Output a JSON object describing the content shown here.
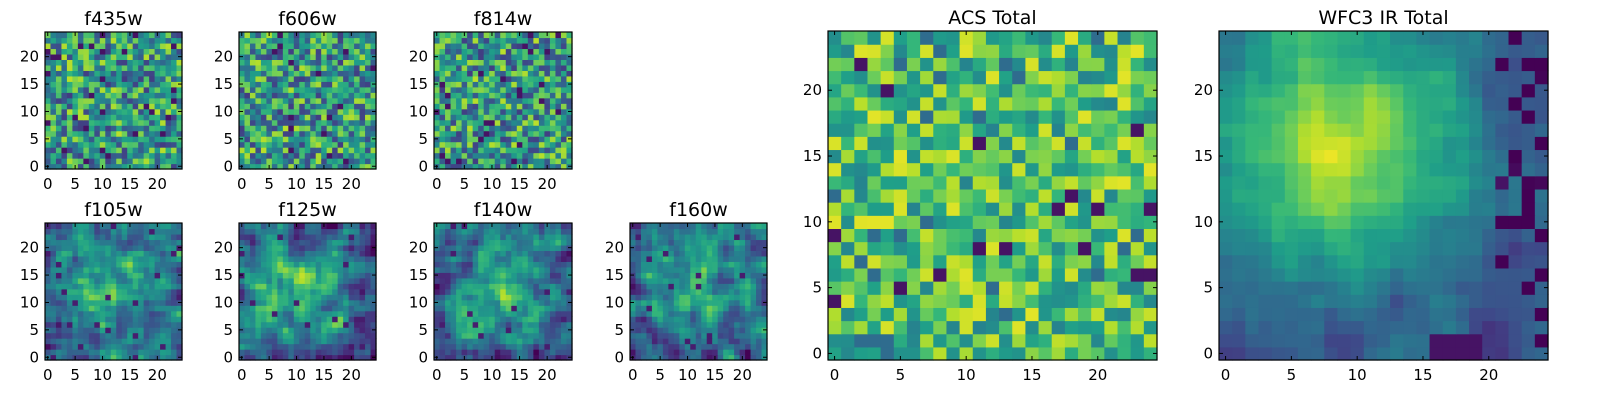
{
  "chart_data": [
    {
      "type": "heatmap",
      "title": "f435w",
      "grid": [
        25,
        25
      ],
      "xlim": [
        -0.5,
        24.5
      ],
      "ylim": [
        -0.5,
        24.5
      ],
      "xticks": [
        0,
        5,
        10,
        15,
        20
      ],
      "yticks": [
        0,
        5,
        10,
        15,
        20
      ],
      "colormap": "viridis",
      "pattern": "noise",
      "seed": 11
    },
    {
      "type": "heatmap",
      "title": "f606w",
      "grid": [
        25,
        25
      ],
      "xlim": [
        -0.5,
        24.5
      ],
      "ylim": [
        -0.5,
        24.5
      ],
      "xticks": [
        0,
        5,
        10,
        15,
        20
      ],
      "yticks": [
        0,
        5,
        10,
        15,
        20
      ],
      "colormap": "viridis",
      "pattern": "noise",
      "seed": 23
    },
    {
      "type": "heatmap",
      "title": "f814w",
      "grid": [
        25,
        25
      ],
      "xlim": [
        -0.5,
        24.5
      ],
      "ylim": [
        -0.5,
        24.5
      ],
      "xticks": [
        0,
        5,
        10,
        15,
        20
      ],
      "yticks": [
        0,
        5,
        10,
        15,
        20
      ],
      "colormap": "viridis",
      "pattern": "noise",
      "seed": 37
    },
    {
      "type": "heatmap",
      "title": "f105w",
      "grid": [
        25,
        25
      ],
      "xlim": [
        -0.5,
        24.5
      ],
      "ylim": [
        -0.5,
        24.5
      ],
      "xticks": [
        0,
        5,
        10,
        15,
        20
      ],
      "yticks": [
        0,
        5,
        10,
        15,
        20
      ],
      "colormap": "viridis",
      "pattern": "smooth",
      "seed": 41
    },
    {
      "type": "heatmap",
      "title": "f125w",
      "grid": [
        25,
        25
      ],
      "xlim": [
        -0.5,
        24.5
      ],
      "ylim": [
        -0.5,
        24.5
      ],
      "xticks": [
        0,
        5,
        10,
        15,
        20
      ],
      "yticks": [
        0,
        5,
        10,
        15,
        20
      ],
      "colormap": "viridis",
      "pattern": "smooth",
      "seed": 53
    },
    {
      "type": "heatmap",
      "title": "f140w",
      "grid": [
        25,
        25
      ],
      "xlim": [
        -0.5,
        24.5
      ],
      "ylim": [
        -0.5,
        24.5
      ],
      "xticks": [
        0,
        5,
        10,
        15,
        20
      ],
      "yticks": [
        0,
        5,
        10,
        15,
        20
      ],
      "colormap": "viridis",
      "pattern": "smooth",
      "seed": 67
    },
    {
      "type": "heatmap",
      "title": "f160w",
      "grid": [
        25,
        25
      ],
      "xlim": [
        -0.5,
        24.5
      ],
      "ylim": [
        -0.5,
        24.5
      ],
      "xticks": [
        0,
        5,
        10,
        15,
        20
      ],
      "yticks": [
        0,
        5,
        10,
        15,
        20
      ],
      "colormap": "viridis",
      "pattern": "smooth",
      "seed": 79
    },
    {
      "type": "heatmap",
      "title": "ACS Total",
      "grid": [
        25,
        25
      ],
      "xlim": [
        -0.5,
        24.5
      ],
      "ylim": [
        -0.5,
        24.5
      ],
      "xticks": [
        0,
        5,
        10,
        15,
        20
      ],
      "yticks": [
        0,
        5,
        10,
        15,
        20
      ],
      "colormap": "viridis",
      "pattern": "bright-noise",
      "seed": 97
    },
    {
      "type": "heatmap",
      "title": "WFC3 IR Total",
      "grid": [
        25,
        25
      ],
      "xlim": [
        -0.5,
        24.5
      ],
      "ylim": [
        -0.5,
        24.5
      ],
      "xticks": [
        0,
        5,
        10,
        15,
        20
      ],
      "yticks": [
        0,
        5,
        10,
        15,
        20
      ],
      "colormap": "viridis",
      "pattern": "gradient",
      "seed": 131
    }
  ]
}
